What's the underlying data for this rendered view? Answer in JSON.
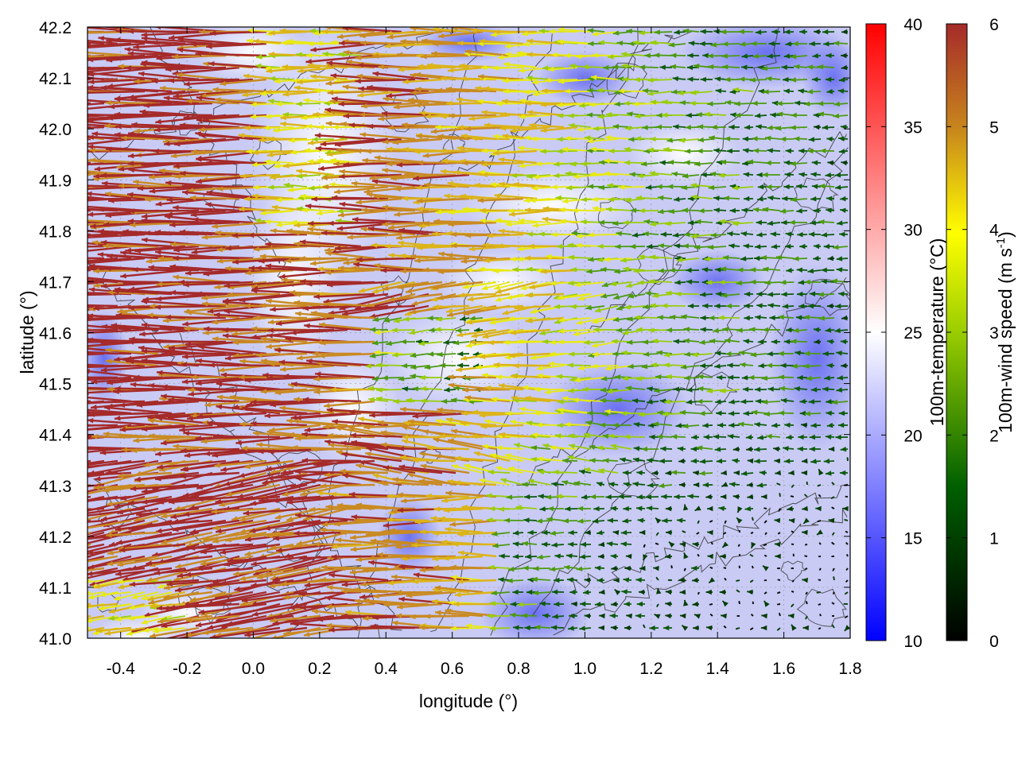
{
  "chart_data": {
    "type": "heatmap",
    "subtype": "map with wind vectors and contour lines",
    "xlabel": "longitude (°)",
    "ylabel": "latitude (°)",
    "xlim": [
      -0.5,
      1.8
    ],
    "ylim": [
      41.0,
      42.2
    ],
    "x_ticks": [
      "-0.4",
      "-0.2",
      "0.0",
      "0.2",
      "0.4",
      "0.6",
      "0.8",
      "1.0",
      "1.2",
      "1.4",
      "1.6",
      "1.8"
    ],
    "y_ticks": [
      "42.2",
      "42.1",
      "42.0",
      "41.9",
      "41.8",
      "41.7",
      "41.6",
      "41.5",
      "41.4",
      "41.3",
      "41.2",
      "41.1",
      "41.0"
    ],
    "grid": true,
    "temperature_colorbar": {
      "label": "100m-temperature (°C)",
      "range": [
        10,
        40
      ],
      "ticks": [
        "40",
        "35",
        "30",
        "25",
        "20",
        "15",
        "10"
      ],
      "colors": [
        "#0000ff",
        "#ffffff",
        "#ff0000"
      ]
    },
    "wind_colorbar": {
      "label": "100m-wind speed (m s",
      "label_superscript": "-1",
      "label_close": ")",
      "range": [
        0,
        6
      ],
      "ticks": [
        "6",
        "5",
        "4",
        "3",
        "2",
        "1",
        "0"
      ],
      "colors": [
        "#000000",
        "#006400",
        "#9acd00",
        "#ffff00",
        "#d4a017",
        "#c87820",
        "#a52a2a"
      ]
    },
    "temperature_field_description": "mostly 18-24 °C; coolest (blue) over the eastern half and around longitude 0.45-0.55 / latitude 41.1-41.3, warmest (near white) around longitude 0.1-0.3 and longitude 0.5-0.8 / latitude 41.5-41.9",
    "wind_field_description": "easterly winds (arrows pointing west) strongest (≈6 m/s, brown) over the western half, weakening eastward to calm (<1 m/s, dark green/black) in the southeast"
  }
}
